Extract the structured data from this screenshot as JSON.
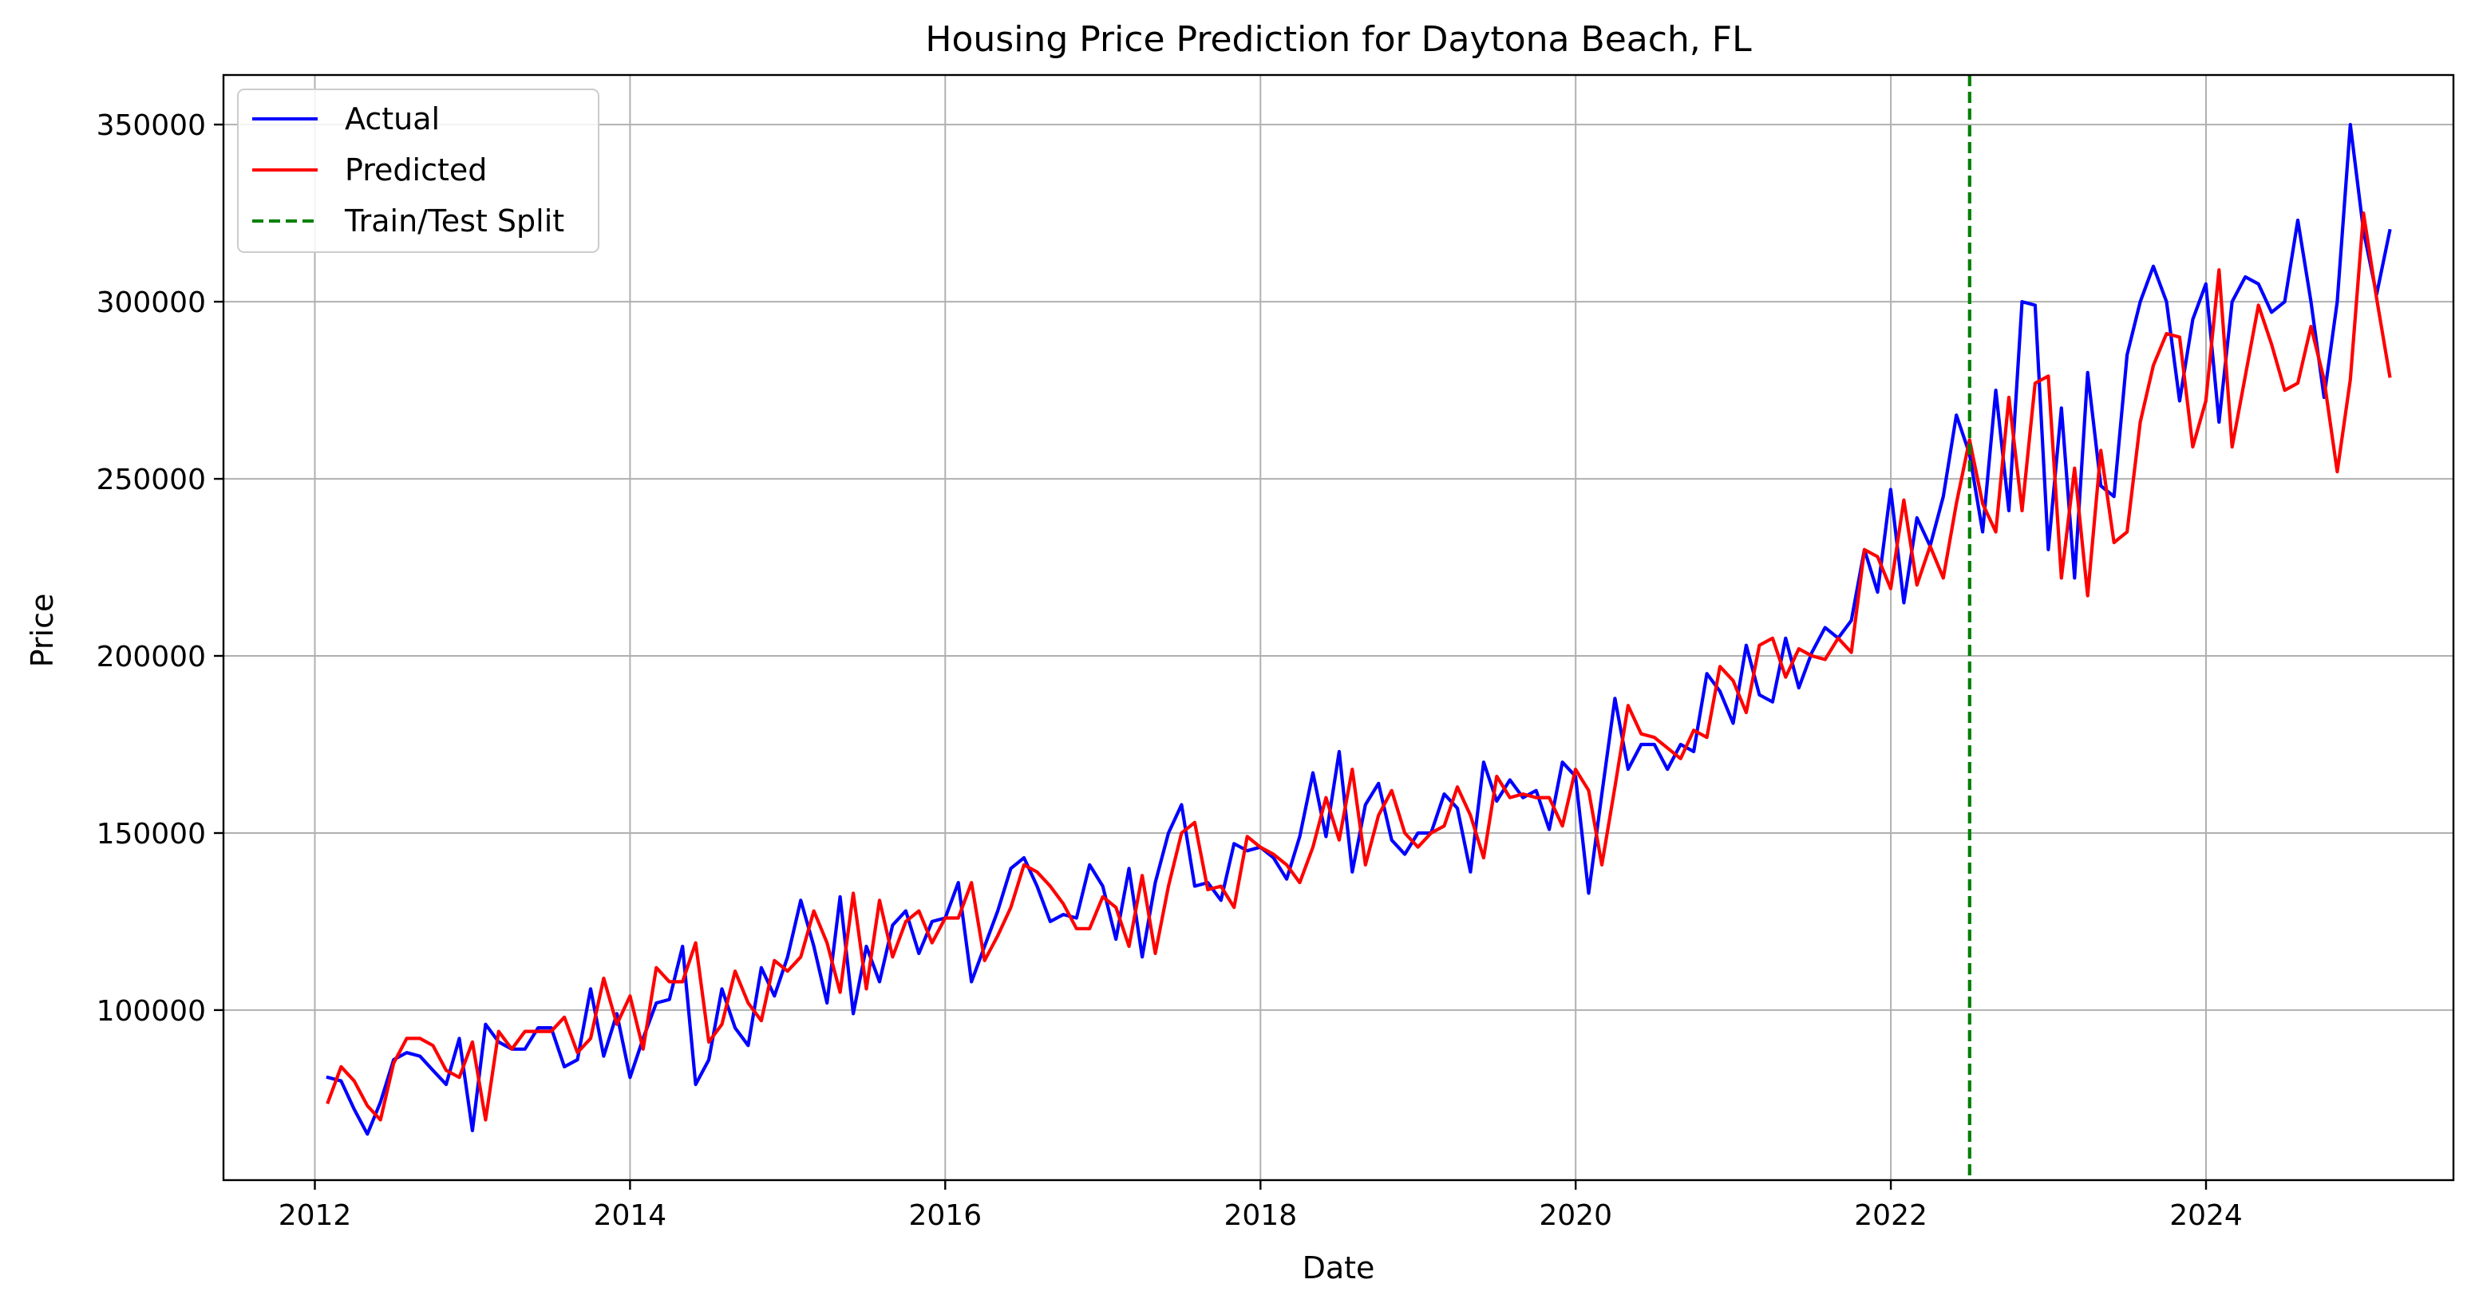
{
  "chart_data": {
    "type": "line",
    "title": "Housing Price Prediction for Daytona Beach, FL",
    "xlabel": "Date",
    "ylabel": "Price",
    "xlim": [
      2011.42,
      2025.57
    ],
    "ylim": [
      52000,
      364000
    ],
    "x_ticks": [
      2012,
      2014,
      2016,
      2018,
      2020,
      2022,
      2024
    ],
    "y_ticks": [
      100000,
      150000,
      200000,
      250000,
      300000,
      350000
    ],
    "grid": true,
    "legend_position": "top-left",
    "colors": {
      "actual": "#0000ff",
      "predicted": "#ff0000",
      "split": "#008000",
      "grid": "#b0b0b0"
    },
    "split_x": 2022.5,
    "split_label": "Train/Test Split",
    "x_start": 2012.083,
    "x_step": 0.08333,
    "series": [
      {
        "name": "Actual",
        "color": "#0000ff",
        "values": [
          81000,
          80000,
          72000,
          65000,
          74000,
          86000,
          88000,
          87000,
          83000,
          79000,
          92000,
          66000,
          96000,
          91000,
          89000,
          89000,
          95000,
          95000,
          84000,
          86000,
          106000,
          87000,
          99000,
          81000,
          92000,
          102000,
          103000,
          118000,
          79000,
          86000,
          106000,
          95000,
          90000,
          112000,
          104000,
          115000,
          131000,
          118000,
          102000,
          132000,
          99000,
          118000,
          108000,
          124000,
          128000,
          116000,
          125000,
          126000,
          136000,
          108000,
          118000,
          128000,
          140000,
          143000,
          135000,
          125000,
          127000,
          126000,
          141000,
          135000,
          120000,
          140000,
          115000,
          136000,
          150000,
          158000,
          135000,
          136000,
          131000,
          147000,
          145000,
          146000,
          143000,
          137000,
          149000,
          167000,
          149000,
          173000,
          139000,
          158000,
          164000,
          148000,
          144000,
          150000,
          150000,
          161000,
          157000,
          139000,
          170000,
          159000,
          165000,
          160000,
          162000,
          151000,
          170000,
          166000,
          133000,
          161000,
          188000,
          168000,
          175000,
          175000,
          168000,
          175000,
          173000,
          195000,
          190000,
          181000,
          203000,
          189000,
          187000,
          205000,
          191000,
          201000,
          208000,
          205000,
          210000,
          230000,
          218000,
          247000,
          215000,
          239000,
          231000,
          245000,
          268000,
          257000,
          235000,
          275000,
          241000,
          300000,
          299000,
          230000,
          270000,
          222000,
          280000,
          248000,
          245000,
          285000,
          300000,
          310000,
          300000,
          272000,
          295000,
          305000,
          266000,
          300000,
          307000,
          305000,
          297000,
          300000,
          323000,
          300000,
          273000,
          300000,
          350000,
          320000,
          302000,
          320000
        ]
      },
      {
        "name": "Predicted",
        "color": "#ff0000",
        "values": [
          74000,
          84000,
          80000,
          73000,
          69000,
          85000,
          92000,
          92000,
          90000,
          83000,
          81000,
          91000,
          69000,
          94000,
          89000,
          94000,
          94000,
          94000,
          98000,
          88000,
          92000,
          109000,
          96000,
          104000,
          89000,
          112000,
          108000,
          108000,
          119000,
          91000,
          96000,
          111000,
          102000,
          97000,
          114000,
          111000,
          115000,
          128000,
          119000,
          105000,
          133000,
          106000,
          131000,
          115000,
          125000,
          128000,
          119000,
          126000,
          126000,
          136000,
          114000,
          121000,
          129000,
          141000,
          139000,
          135000,
          130000,
          123000,
          123000,
          132000,
          129000,
          118000,
          138000,
          116000,
          135000,
          150000,
          153000,
          134000,
          135000,
          129000,
          149000,
          146000,
          144000,
          141000,
          136000,
          146000,
          160000,
          148000,
          168000,
          141000,
          155000,
          162000,
          150000,
          146000,
          150000,
          152000,
          163000,
          155000,
          143000,
          166000,
          160000,
          161000,
          160000,
          160000,
          152000,
          168000,
          162000,
          141000,
          163000,
          186000,
          178000,
          177000,
          174000,
          171000,
          179000,
          177000,
          197000,
          193000,
          184000,
          203000,
          205000,
          194000,
          202000,
          200000,
          199000,
          205000,
          201000,
          230000,
          228000,
          219000,
          244000,
          220000,
          231000,
          222000,
          243000,
          261000,
          243000,
          235000,
          273000,
          241000,
          277000,
          279000,
          222000,
          253000,
          217000,
          258000,
          232000,
          235000,
          266000,
          282000,
          291000,
          290000,
          259000,
          272000,
          309000,
          259000,
          279000,
          299000,
          288000,
          275000,
          277000,
          293000,
          278000,
          252000,
          278000,
          325000,
          301000,
          279000
        ]
      }
    ]
  }
}
